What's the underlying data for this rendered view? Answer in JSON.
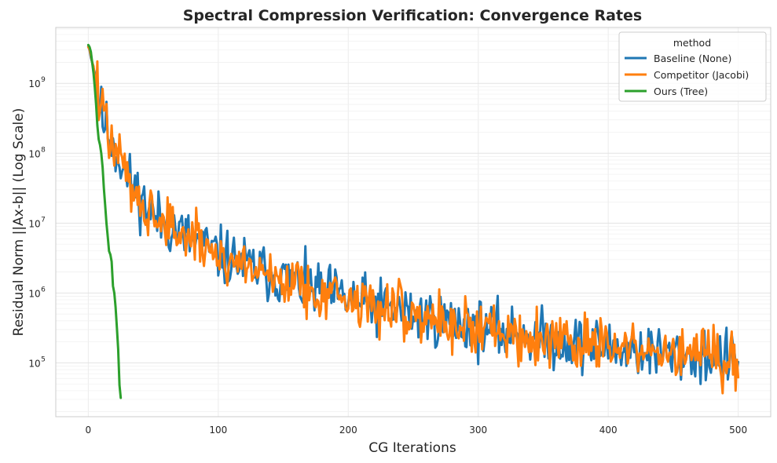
{
  "chart_data": {
    "type": "line",
    "title": "Spectral Compression Verification: Convergence Rates",
    "xlabel": "CG Iterations",
    "ylabel": "Residual Norm ||Ax-b|| (Log Scale)",
    "yscale": "log",
    "xlim": [
      -25,
      525
    ],
    "ylim_log10": [
      4.23,
      9.8
    ],
    "xticks": [
      0,
      100,
      200,
      300,
      400,
      500
    ],
    "xtick_labels": [
      "0",
      "100",
      "200",
      "300",
      "400",
      "500"
    ],
    "yticks_log10": [
      5,
      6,
      7,
      8,
      9
    ],
    "ytick_labels": [
      {
        "base": "10",
        "exp": "5"
      },
      {
        "base": "10",
        "exp": "6"
      },
      {
        "base": "10",
        "exp": "7"
      },
      {
        "base": "10",
        "exp": "8"
      },
      {
        "base": "10",
        "exp": "9"
      }
    ],
    "grid": true,
    "legend": {
      "title": "method",
      "location": "top-right",
      "entries": [
        "Baseline (None)",
        "Competitor (Jacobi)",
        "Ours (Tree)"
      ]
    },
    "series": [
      {
        "name": "Baseline (None)",
        "color": "#1f77b4",
        "trend_log10": [
          [
            0,
            9.55
          ],
          [
            5,
            9.15
          ],
          [
            10,
            8.55
          ],
          [
            20,
            8.1
          ],
          [
            30,
            7.65
          ],
          [
            50,
            7.1
          ],
          [
            80,
            6.75
          ],
          [
            100,
            6.55
          ],
          [
            150,
            6.2
          ],
          [
            200,
            5.9
          ],
          [
            250,
            5.7
          ],
          [
            300,
            5.5
          ],
          [
            350,
            5.35
          ],
          [
            400,
            5.22
          ],
          [
            450,
            5.12
          ],
          [
            500,
            5.05
          ]
        ],
        "noise_dex": 0.2,
        "x_end": 500,
        "seed": 11
      },
      {
        "name": "Competitor (Jacobi)",
        "color": "#ff7f0e",
        "trend_log10": [
          [
            0,
            9.55
          ],
          [
            5,
            9.15
          ],
          [
            10,
            8.55
          ],
          [
            20,
            8.1
          ],
          [
            30,
            7.65
          ],
          [
            50,
            7.1
          ],
          [
            80,
            6.75
          ],
          [
            100,
            6.55
          ],
          [
            150,
            6.2
          ],
          [
            200,
            5.9
          ],
          [
            250,
            5.7
          ],
          [
            300,
            5.5
          ],
          [
            350,
            5.35
          ],
          [
            400,
            5.22
          ],
          [
            450,
            5.12
          ],
          [
            500,
            5.05
          ]
        ],
        "noise_dex": 0.2,
        "x_end": 500,
        "seed": 47
      },
      {
        "name": "Ours (Tree)",
        "color": "#2ca02c",
        "points_log10": [
          [
            0,
            9.55
          ],
          [
            1,
            9.52
          ],
          [
            2,
            9.45
          ],
          [
            3,
            9.3
          ],
          [
            4,
            9.15
          ],
          [
            5,
            8.95
          ],
          [
            6,
            8.7
          ],
          [
            7,
            8.4
          ],
          [
            8,
            8.2
          ],
          [
            9,
            8.12
          ],
          [
            10,
            8.0
          ],
          [
            11,
            7.8
          ],
          [
            12,
            7.5
          ],
          [
            13,
            7.25
          ],
          [
            14,
            7.0
          ],
          [
            15,
            6.8
          ],
          [
            16,
            6.6
          ],
          [
            17,
            6.55
          ],
          [
            18,
            6.45
          ],
          [
            19,
            6.1
          ],
          [
            20,
            6.0
          ],
          [
            21,
            5.8
          ],
          [
            22,
            5.5
          ],
          [
            23,
            5.2
          ],
          [
            24,
            4.68
          ],
          [
            25,
            4.5
          ]
        ]
      }
    ]
  }
}
